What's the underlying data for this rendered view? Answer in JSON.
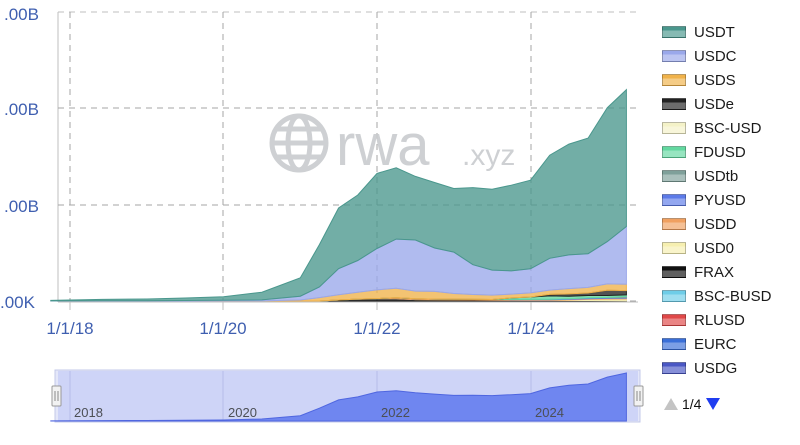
{
  "chart_data": {
    "type": "area",
    "stacked": true,
    "y_tick_labels": [
      ".00K",
      ".00B",
      ".00B",
      ".00B",
      ".00B"
    ],
    "x_tick_labels": [
      "1/1/18",
      "1/1/20",
      "1/1/22",
      "1/1/24"
    ],
    "navigator_labels": [
      "2018",
      "2020",
      "2022",
      "2024"
    ],
    "x": [
      "2017-10",
      "2018-06",
      "2019-01",
      "2019-07",
      "2020-01",
      "2020-07",
      "2021-01",
      "2021-04",
      "2021-07",
      "2021-10",
      "2022-01",
      "2022-04",
      "2022-07",
      "2022-10",
      "2023-01",
      "2023-04",
      "2023-07",
      "2023-10",
      "2024-01",
      "2024-04",
      "2024-07",
      "2024-10",
      "2025-01",
      "2025-04"
    ],
    "series": [
      {
        "name": "USDG",
        "color": "#4a57c4",
        "values": [
          0,
          0,
          0,
          0,
          0,
          0,
          0,
          0,
          0,
          0,
          0,
          0,
          0,
          0,
          0,
          0,
          0,
          0,
          0,
          0,
          0,
          0,
          0,
          0
        ]
      },
      {
        "name": "EURC",
        "color": "#3a6fd8",
        "values": [
          0,
          0,
          0,
          0,
          0,
          0,
          0,
          0,
          0,
          0,
          0,
          0,
          0,
          0,
          0,
          0,
          0,
          0,
          0,
          0,
          0,
          0,
          0,
          0
        ]
      },
      {
        "name": "RLUSD",
        "color": "#e04848",
        "values": [
          0,
          0,
          0,
          0,
          0,
          0,
          0,
          0,
          0,
          0,
          0,
          0,
          0,
          0,
          0,
          0,
          0,
          0,
          0,
          0,
          0,
          0,
          0,
          0
        ]
      },
      {
        "name": "BSC-BUSD",
        "color": "#6ecde8",
        "values": [
          0,
          0,
          0,
          0,
          0,
          0,
          0,
          0,
          0,
          0,
          0,
          0,
          0,
          0,
          0,
          0,
          0,
          0,
          0,
          0,
          0,
          0,
          0,
          0
        ]
      },
      {
        "name": "FRAX",
        "color": "#111111",
        "values": [
          0,
          0,
          0,
          0,
          0,
          0,
          0,
          0,
          1,
          2,
          2.5,
          2.5,
          1.5,
          1.2,
          1.1,
          1,
          0.9,
          0.7,
          0.6,
          0.6,
          0.5,
          0.5,
          0.4,
          0.3
        ]
      },
      {
        "name": "USD0",
        "color": "#f6efb0",
        "values": [
          0,
          0,
          0,
          0,
          0,
          0,
          0,
          0,
          0,
          0,
          0,
          0,
          0,
          0,
          0,
          0,
          0,
          0,
          0,
          0,
          0.5,
          1.2,
          1.6,
          1.8
        ]
      },
      {
        "name": "USDD",
        "color": "#f0a060",
        "values": [
          0,
          0,
          0,
          0,
          0,
          0,
          0,
          0,
          0,
          0,
          0,
          0.8,
          0.8,
          0.8,
          0.7,
          0.7,
          0.7,
          0.7,
          0.7,
          0.7,
          0.7,
          0.7,
          0.7,
          0.7
        ]
      },
      {
        "name": "PYUSD",
        "color": "#5d7be8",
        "values": [
          0,
          0,
          0,
          0,
          0,
          0,
          0,
          0,
          0,
          0,
          0,
          0,
          0,
          0,
          0,
          0,
          0,
          0.3,
          0.4,
          0.5,
          0.7,
          0.8,
          0.6,
          0.6
        ]
      },
      {
        "name": "USDtb",
        "color": "#7fa09a",
        "values": [
          0,
          0,
          0,
          0,
          0,
          0,
          0,
          0,
          0,
          0,
          0,
          0,
          0,
          0,
          0,
          0,
          0,
          0,
          0,
          0,
          0,
          0,
          0.4,
          1.4
        ]
      },
      {
        "name": "FDUSD",
        "color": "#63d8a0",
        "values": [
          0,
          0,
          0,
          0,
          0,
          0,
          0,
          0,
          0,
          0,
          0,
          0,
          0,
          0,
          0,
          0,
          0,
          1.5,
          2.5,
          3.5,
          2.5,
          2.5,
          2,
          1.5
        ]
      },
      {
        "name": "BSC-USD",
        "color": "#f4f2c8",
        "values": [
          0,
          0,
          0,
          0,
          0,
          0,
          0,
          0,
          0,
          0,
          0,
          0,
          0,
          0,
          0,
          0,
          0,
          0,
          0,
          0,
          0,
          0,
          0,
          0
        ]
      },
      {
        "name": "USDe",
        "color": "#222222",
        "values": [
          0,
          0,
          0,
          0,
          0,
          0,
          0,
          0,
          0,
          0,
          0,
          0,
          0,
          0,
          0,
          0,
          0,
          0,
          0,
          1.5,
          2.5,
          2.6,
          5.5,
          4.5
        ]
      },
      {
        "name": "USDS",
        "color": "#f0b24a",
        "values": [
          0,
          0,
          0,
          0,
          0.1,
          0.15,
          1,
          3.5,
          5.5,
          7,
          9,
          10,
          8,
          8,
          6,
          5,
          4.5,
          4,
          4.2,
          4.5,
          5.5,
          5.8,
          6.5,
          6.5
        ]
      },
      {
        "name": "USDC",
        "color": "#9aa8ea",
        "values": [
          0.1,
          0.2,
          0.3,
          0.5,
          0.6,
          1,
          4,
          11,
          27,
          33,
          43,
          51,
          53,
          45,
          43,
          31,
          26,
          24,
          25,
          33,
          35,
          35,
          44,
          60
        ]
      },
      {
        "name": "USDT",
        "color": "#4a978d",
        "values": [
          0.5,
          1.5,
          1.8,
          2.6,
          3.8,
          8,
          19,
          44,
          63,
          68,
          78,
          74,
          66,
          68,
          66,
          80,
          84,
          89,
          92,
          107,
          115,
          120,
          139,
          142
        ]
      }
    ]
  },
  "legend_items": [
    "USDT",
    "USDC",
    "USDS",
    "USDe",
    "BSC-USD",
    "FDUSD",
    "USDtb",
    "PYUSD",
    "USDD",
    "USD0",
    "FRAX",
    "BSC-BUSD",
    "RLUSD",
    "EURC",
    "USDG"
  ],
  "legend_colors": {
    "USDT": "#4a978d",
    "USDC": "#9aa8ea",
    "USDS": "#f0b24a",
    "USDe": "#222222",
    "BSC-USD": "#f4f2c8",
    "FDUSD": "#63d8a0",
    "USDtb": "#7fa09a",
    "PYUSD": "#5d7be8",
    "USDD": "#f0a060",
    "USD0": "#f6efb0",
    "FRAX": "#111111",
    "BSC-BUSD": "#6ecde8",
    "RLUSD": "#e04848",
    "EURC": "#3a6fd8",
    "USDG": "#4a57c4"
  },
  "watermark": {
    "main": "rwa",
    "suffix": ".xyz"
  },
  "pager": {
    "text": "1/4"
  }
}
